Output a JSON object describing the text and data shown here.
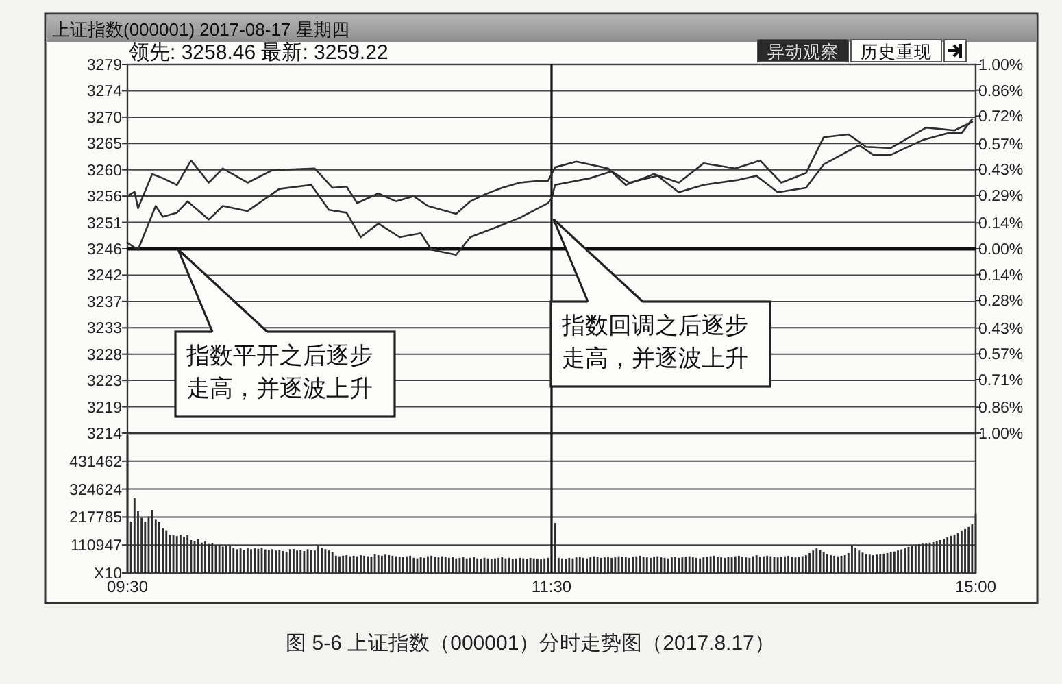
{
  "chart_data": [
    {
      "type": "line",
      "title": "上证指数(000001) 2017-08-17 星期四",
      "subtitle": "领先: 3258.46 最新: 3259.22",
      "categories": [
        "09:30",
        null,
        null,
        null,
        null,
        null,
        null,
        null,
        null,
        null,
        null,
        null,
        null,
        null,
        null,
        null,
        null,
        null,
        null,
        null,
        null,
        null,
        null,
        null,
        null,
        null,
        null,
        null,
        null,
        null,
        null,
        null,
        null,
        null,
        null,
        null,
        null,
        null,
        null,
        null,
        null,
        null,
        null,
        null,
        null,
        null,
        null,
        null,
        null,
        null,
        null,
        null,
        null,
        null,
        null,
        null,
        null,
        null,
        null,
        null,
        null,
        null,
        null,
        null,
        null,
        null,
        null,
        null,
        null,
        null,
        null,
        null,
        null,
        null,
        null,
        null,
        null,
        null,
        null,
        null,
        null,
        null,
        null,
        null,
        null,
        null,
        null,
        null,
        null,
        null,
        null,
        null,
        null,
        null,
        null,
        null,
        null,
        null,
        null,
        null,
        null,
        null,
        null,
        null,
        null,
        null,
        null,
        null,
        null,
        null,
        null,
        null,
        null,
        null,
        null,
        null,
        null,
        null,
        null,
        null,
        "11:30",
        null,
        null,
        null,
        null,
        null,
        null,
        null,
        null,
        null,
        null,
        null,
        null,
        null,
        null,
        null,
        null,
        null,
        null,
        null,
        null,
        null,
        null,
        null,
        null,
        null,
        null,
        null,
        null,
        null,
        null,
        null,
        null,
        null,
        null,
        null,
        null,
        null,
        null,
        null,
        null,
        null,
        null,
        null,
        null,
        null,
        null,
        null,
        null,
        null,
        null,
        null,
        null,
        null,
        null,
        null,
        null,
        null,
        null,
        null,
        null,
        null,
        null,
        null,
        null,
        null,
        null,
        null,
        null,
        null,
        null,
        null,
        null,
        null,
        null,
        null,
        null,
        null,
        null,
        null,
        null,
        null,
        null,
        null,
        null,
        null,
        null,
        null,
        null,
        null,
        null,
        null,
        null,
        null,
        null,
        null,
        null,
        null,
        null,
        null,
        null,
        null,
        null,
        null,
        null,
        null,
        null,
        null,
        null,
        null,
        null,
        null,
        null,
        null,
        null,
        null,
        null,
        null,
        null,
        null,
        "15:00"
      ],
      "ylim": [
        3213.98,
        3278.92
      ],
      "yticks": [
        {
          "value": 3278.92,
          "label": "3279"
        },
        {
          "value": 3274.28,
          "label": "3274"
        },
        {
          "value": 3269.64,
          "label": "3270"
        },
        {
          "value": 3265.0,
          "label": "3265"
        },
        {
          "value": 3260.37,
          "label": "3260"
        },
        {
          "value": 3255.73,
          "label": "3256"
        },
        {
          "value": 3251.09,
          "label": "3251"
        },
        {
          "value": 3246.45,
          "label": "3246"
        },
        {
          "value": 3241.81,
          "label": "3242"
        },
        {
          "value": 3237.17,
          "label": "3237"
        },
        {
          "value": 3232.53,
          "label": "3233"
        },
        {
          "value": 3227.9,
          "label": "3228"
        },
        {
          "value": 3223.26,
          "label": "3223"
        },
        {
          "value": 3218.62,
          "label": "3219"
        },
        {
          "value": 3213.98,
          "label": "3214"
        }
      ],
      "y2lim": [
        -1,
        1
      ],
      "y2ticks": [
        {
          "value": 1,
          "label": "1.00%"
        },
        {
          "value": 0.86,
          "label": "0.86%"
        },
        {
          "value": 0.72,
          "label": "0.72%"
        },
        {
          "value": 0.57,
          "label": "0.57%"
        },
        {
          "value": 0.43,
          "label": "0.43%"
        },
        {
          "value": 0.29,
          "label": "0.29%"
        },
        {
          "value": 0.14,
          "label": "0.14%"
        },
        {
          "value": 0,
          "label": "0.00%"
        },
        {
          "value": -0.14,
          "label": "0.14%"
        },
        {
          "value": -0.28,
          "label": "0.28%"
        },
        {
          "value": -0.43,
          "label": "0.43%"
        },
        {
          "value": -0.57,
          "label": "0.57%"
        },
        {
          "value": -0.71,
          "label": "0.71%"
        },
        {
          "value": -0.86,
          "label": "0.86%"
        },
        {
          "value": -1,
          "label": "1.00%"
        }
      ],
      "tick_labels": "y",
      "grid": "y",
      "ref_lines": [
        {
          "axis": "x",
          "value": "11:30"
        },
        {
          "axis": "y",
          "value": 3246.45
        }
      ],
      "series": [
        {
          "color": "#2e2e2e",
          "values": [
            3255.7,
            null,
            3256.5,
            3253.6,
            null,
            null,
            null,
            3259.6,
            null,
            null,
            3258.9,
            null,
            null,
            null,
            3257.7,
            null,
            null,
            null,
            3262.0,
            null,
            null,
            null,
            null,
            3258.1,
            null,
            null,
            null,
            3260.6,
            null,
            null,
            null,
            null,
            null,
            null,
            3258.1,
            null,
            null,
            null,
            null,
            null,
            null,
            3260.3,
            null,
            null,
            null,
            null,
            null,
            null,
            null,
            null,
            null,
            null,
            null,
            3260.6,
            null,
            null,
            null,
            null,
            3257.2,
            null,
            null,
            null,
            3257.4,
            null,
            null,
            3254.5,
            null,
            null,
            null,
            null,
            null,
            3256.2,
            null,
            null,
            null,
            null,
            3254.8,
            null,
            null,
            null,
            null,
            3255.7,
            null,
            null,
            null,
            3254.0,
            null,
            null,
            null,
            null,
            null,
            null,
            null,
            3252.6,
            null,
            null,
            null,
            3254.8,
            null,
            null,
            null,
            3256.0,
            null,
            null,
            null,
            null,
            3257.2,
            null,
            null,
            null,
            null,
            3258.1,
            null,
            null,
            null,
            null,
            3258.4,
            null,
            null,
            3258.4,
            null,
            3260.8,
            null,
            null,
            null,
            null,
            null,
            3261.8,
            null,
            null,
            null,
            null,
            null,
            null,
            null,
            null,
            3260.6,
            null,
            null,
            null,
            null,
            3257.7,
            null,
            null,
            null,
            null,
            null,
            null,
            null,
            3259.6,
            null,
            null,
            null,
            null,
            null,
            null,
            3258.1,
            null,
            null,
            null,
            null,
            null,
            null,
            3261.5,
            null,
            null,
            null,
            null,
            null,
            null,
            null,
            null,
            3260.6,
            null,
            null,
            null,
            null,
            null,
            null,
            3262.0,
            null,
            null,
            null,
            null,
            null,
            3258.1,
            null,
            null,
            null,
            null,
            null,
            null,
            3259.8,
            null,
            null,
            null,
            null,
            3266.1,
            null,
            null,
            null,
            null,
            null,
            null,
            3266.6,
            null,
            null,
            null,
            null,
            3264.4,
            null,
            null,
            null,
            null,
            null,
            null,
            3264.2,
            null,
            null,
            null,
            null,
            null,
            null,
            null,
            null,
            null,
            3267.8,
            null,
            null,
            null,
            null,
            null,
            null,
            null,
            3267.3,
            null,
            null,
            null,
            null,
            3268.8,
            null
          ]
        },
        {
          "color": "#2e2e2e",
          "values": [
            3247.5,
            null,
            null,
            3246.3,
            null,
            null,
            null,
            null,
            3254.0,
            null,
            3252.1,
            null,
            null,
            null,
            3252.8,
            null,
            null,
            3254.8,
            null,
            null,
            null,
            null,
            null,
            3251.6,
            null,
            null,
            null,
            3254.0,
            null,
            null,
            null,
            null,
            null,
            null,
            3253.1,
            null,
            null,
            null,
            null,
            null,
            null,
            null,
            null,
            3257.0,
            null,
            null,
            null,
            null,
            null,
            null,
            null,
            null,
            3257.7,
            null,
            null,
            null,
            null,
            3253.3,
            null,
            null,
            null,
            null,
            3252.8,
            null,
            null,
            null,
            3248.5,
            null,
            null,
            null,
            null,
            3250.9,
            null,
            null,
            null,
            null,
            null,
            3248.5,
            null,
            null,
            null,
            null,
            null,
            3249.2,
            null,
            null,
            3246.3,
            null,
            null,
            null,
            null,
            null,
            null,
            3245.4,
            null,
            null,
            null,
            3248.5,
            null,
            null,
            null,
            null,
            null,
            null,
            null,
            3250.4,
            null,
            null,
            null,
            null,
            null,
            3251.9,
            null,
            null,
            null,
            null,
            null,
            null,
            null,
            3254.5,
            3255.3,
            3257.7,
            null,
            null,
            null,
            null,
            null,
            null,
            null,
            null,
            null,
            3258.9,
            null,
            null,
            null,
            null,
            null,
            3260.1,
            null,
            null,
            null,
            null,
            3258.1,
            null,
            null,
            null,
            null,
            null,
            null,
            null,
            3259.3,
            null,
            null,
            null,
            null,
            null,
            3256.4,
            null,
            null,
            null,
            null,
            null,
            null,
            3257.7,
            null,
            null,
            null,
            null,
            null,
            null,
            null,
            null,
            null,
            3258.6,
            null,
            null,
            null,
            null,
            3259.3,
            null,
            null,
            null,
            null,
            null,
            3256.4,
            null,
            null,
            null,
            null,
            null,
            null,
            null,
            3257.2,
            null,
            null,
            null,
            null,
            3261.3,
            null,
            null,
            null,
            null,
            null,
            null,
            null,
            null,
            null,
            3264.7,
            null,
            null,
            null,
            3263.0,
            null,
            null,
            null,
            null,
            3263.0,
            null,
            null,
            null,
            null,
            null,
            null,
            null,
            null,
            3265.6,
            null,
            null,
            null,
            null,
            null,
            null,
            3266.8,
            null,
            null,
            null,
            3266.8,
            null,
            null,
            3269.3,
            null
          ]
        }
      ],
      "annotations": [
        "指数平开之后逐步走高，并逐波上升",
        "指数回调之后逐步走高，并逐波上升",
        "异动观察",
        "历史重现"
      ]
    },
    {
      "type": "bar",
      "categories": [
        "09:30",
        null,
        null,
        null,
        null,
        null,
        null,
        null,
        null,
        null,
        null,
        null,
        null,
        null,
        null,
        null,
        null,
        null,
        null,
        null,
        null,
        null,
        null,
        null,
        null,
        null,
        null,
        null,
        null,
        null,
        null,
        null,
        null,
        null,
        null,
        null,
        null,
        null,
        null,
        null,
        null,
        null,
        null,
        null,
        null,
        null,
        null,
        null,
        null,
        null,
        null,
        null,
        null,
        null,
        null,
        null,
        null,
        null,
        null,
        null,
        null,
        null,
        null,
        null,
        null,
        null,
        null,
        null,
        null,
        null,
        null,
        null,
        null,
        null,
        null,
        null,
        null,
        null,
        null,
        null,
        null,
        null,
        null,
        null,
        null,
        null,
        null,
        null,
        null,
        null,
        null,
        null,
        null,
        null,
        null,
        null,
        null,
        null,
        null,
        null,
        null,
        null,
        null,
        null,
        null,
        null,
        null,
        null,
        null,
        null,
        null,
        null,
        null,
        null,
        null,
        null,
        null,
        null,
        null,
        null,
        "11:30",
        null,
        null,
        null,
        null,
        null,
        null,
        null,
        null,
        null,
        null,
        null,
        null,
        null,
        null,
        null,
        null,
        null,
        null,
        null,
        null,
        null,
        null,
        null,
        null,
        null,
        null,
        null,
        null,
        null,
        null,
        null,
        null,
        null,
        null,
        null,
        null,
        null,
        null,
        null,
        null,
        null,
        null,
        null,
        null,
        null,
        null,
        null,
        null,
        null,
        null,
        null,
        null,
        null,
        null,
        null,
        null,
        null,
        null,
        null,
        null,
        null,
        null,
        null,
        null,
        null,
        null,
        null,
        null,
        null,
        null,
        null,
        null,
        null,
        null,
        null,
        null,
        null,
        null,
        null,
        null,
        null,
        null,
        null,
        null,
        null,
        null,
        null,
        null,
        null,
        null,
        null,
        null,
        null,
        null,
        null,
        null,
        null,
        null,
        null,
        null,
        null,
        null,
        null,
        null,
        null,
        null,
        null,
        null,
        null,
        null,
        null,
        null,
        null,
        null,
        null,
        null,
        null,
        null,
        null,
        "15:00"
      ],
      "ylim": [
        4109,
        538300
      ],
      "yticks": [
        {
          "value": 4109,
          "label": "X10"
        },
        110947,
        217785,
        324624,
        431462
      ],
      "grid": "y",
      "ref_lines": [
        {
          "axis": "x",
          "value": "11:30"
        }
      ],
      "color": "#2e2e2e",
      "values": [
        530000,
        200000,
        290000,
        240000,
        215000,
        200000,
        220000,
        245000,
        210000,
        200000,
        175000,
        165000,
        150000,
        148000,
        145000,
        150000,
        142000,
        148000,
        130000,
        125000,
        135000,
        120000,
        125000,
        115000,
        118000,
        110000,
        112000,
        105000,
        110000,
        108000,
        100000,
        95000,
        98000,
        92000,
        100000,
        95000,
        98000,
        96000,
        100000,
        94000,
        92000,
        95000,
        90000,
        92000,
        88000,
        85000,
        95000,
        96000,
        90000,
        92000,
        88000,
        95000,
        92000,
        90000,
        108000,
        100000,
        95000,
        90000,
        85000,
        70000,
        68000,
        70000,
        72000,
        68000,
        70000,
        68000,
        72000,
        70000,
        68000,
        66000,
        75000,
        72000,
        70000,
        74000,
        72000,
        70000,
        68000,
        66000,
        65000,
        68000,
        70000,
        62000,
        60000,
        65000,
        62000,
        68000,
        70000,
        66000,
        64000,
        68000,
        66000,
        62000,
        65000,
        60000,
        62000,
        64000,
        60000,
        62000,
        65000,
        60000,
        58000,
        62000,
        60000,
        58000,
        60000,
        62000,
        64000,
        60000,
        62000,
        58000,
        60000,
        62000,
        60000,
        58000,
        62000,
        60000,
        58000,
        56000,
        60000,
        62000,
        null,
        195000,
        62000,
        60000,
        58000,
        62000,
        60000,
        64000,
        66000,
        62000,
        60000,
        64000,
        68000,
        66000,
        62000,
        64000,
        66000,
        62000,
        64000,
        68000,
        66000,
        64000,
        62000,
        66000,
        68000,
        70000,
        66000,
        64000,
        62000,
        66000,
        68000,
        64000,
        62000,
        60000,
        64000,
        66000,
        62000,
        64000,
        66000,
        68000,
        64000,
        62000,
        60000,
        64000,
        66000,
        68000,
        70000,
        66000,
        64000,
        62000,
        66000,
        64000,
        68000,
        70000,
        66000,
        64000,
        62000,
        68000,
        72000,
        66000,
        68000,
        70000,
        68000,
        66000,
        64000,
        66000,
        68000,
        70000,
        66000,
        64000,
        66000,
        68000,
        72000,
        80000,
        90000,
        98000,
        92000,
        84000,
        76000,
        72000,
        70000,
        68000,
        70000,
        72000,
        80000,
        110000,
        100000,
        90000,
        82000,
        76000,
        74000,
        72000,
        74000,
        76000,
        78000,
        80000,
        84000,
        86000,
        90000,
        94000,
        98000,
        104000,
        108000,
        112000,
        114000,
        116000,
        118000,
        120000,
        122000,
        126000,
        130000,
        134000,
        140000,
        146000,
        150000,
        156000,
        164000,
        172000,
        180000,
        190000,
        230000
      ],
      "annotations": [
        "图 5-6 上证指数（000001）分时走势图（2017.8.17）"
      ]
    }
  ]
}
